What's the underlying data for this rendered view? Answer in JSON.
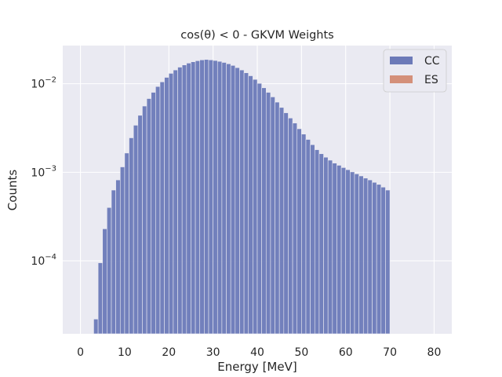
{
  "chart_data": {
    "type": "bar",
    "title": "cos(θ) < 0 - GKVM Weights",
    "xlabel": "Energy [MeV]",
    "ylabel": "Counts",
    "xlim": [
      -4,
      84
    ],
    "xticks": [
      0,
      10,
      20,
      30,
      40,
      50,
      60,
      70,
      80
    ],
    "yscale": "log",
    "ylim": [
      1.5e-05,
      0.027
    ],
    "yticks": [
      {
        "value": 0.0001,
        "base": "10",
        "exp": "−4"
      },
      {
        "value": 0.001,
        "base": "10",
        "exp": "−3"
      },
      {
        "value": 0.01,
        "base": "10",
        "exp": "−2"
      }
    ],
    "grid": true,
    "legend_position": "top-right",
    "bin_width": 1,
    "series": [
      {
        "name": "CC",
        "color": "#6c7ab8",
        "bins": [
          [
            3,
            2.2e-05
          ],
          [
            4,
            9.5e-05
          ],
          [
            5,
            0.00023
          ],
          [
            6,
            0.0004
          ],
          [
            7,
            0.00063
          ],
          [
            8,
            0.00082
          ],
          [
            9,
            0.00115
          ],
          [
            10,
            0.00165
          ],
          [
            11,
            0.00245
          ],
          [
            12,
            0.0034
          ],
          [
            13,
            0.0044
          ],
          [
            14,
            0.0056
          ],
          [
            15,
            0.0068
          ],
          [
            16,
            0.008
          ],
          [
            17,
            0.0093
          ],
          [
            18,
            0.0105
          ],
          [
            19,
            0.0118
          ],
          [
            20,
            0.0131
          ],
          [
            21,
            0.0143
          ],
          [
            22,
            0.0154
          ],
          [
            23,
            0.0163
          ],
          [
            24,
            0.0171
          ],
          [
            25,
            0.0177
          ],
          [
            26,
            0.0182
          ],
          [
            27,
            0.0186
          ],
          [
            28,
            0.0188
          ],
          [
            29,
            0.0186
          ],
          [
            30,
            0.0183
          ],
          [
            31,
            0.0179
          ],
          [
            32,
            0.0174
          ],
          [
            33,
            0.0168
          ],
          [
            34,
            0.0161
          ],
          [
            35,
            0.0152
          ],
          [
            36,
            0.0143
          ],
          [
            37,
            0.0133
          ],
          [
            38,
            0.0123
          ],
          [
            39,
            0.0112
          ],
          [
            40,
            0.0101
          ],
          [
            41,
            0.009
          ],
          [
            42,
            0.008
          ],
          [
            43,
            0.0071
          ],
          [
            44,
            0.0062
          ],
          [
            45,
            0.0054
          ],
          [
            46,
            0.0047
          ],
          [
            47,
            0.0041
          ],
          [
            48,
            0.0036
          ],
          [
            49,
            0.0031
          ],
          [
            50,
            0.0027
          ],
          [
            51,
            0.00235
          ],
          [
            52,
            0.00205
          ],
          [
            53,
            0.0018
          ],
          [
            54,
            0.00162
          ],
          [
            55,
            0.00148
          ],
          [
            56,
            0.00137
          ],
          [
            57,
            0.00127
          ],
          [
            58,
            0.0012
          ],
          [
            59,
            0.00113
          ],
          [
            60,
            0.00107
          ],
          [
            61,
            0.00101
          ],
          [
            62,
            0.00096
          ],
          [
            63,
            0.00091
          ],
          [
            64,
            0.00086
          ],
          [
            65,
            0.00082
          ],
          [
            66,
            0.00077
          ],
          [
            67,
            0.00073
          ],
          [
            68,
            0.00068
          ],
          [
            69,
            0.00063
          ]
        ]
      },
      {
        "name": "ES",
        "color": "#d4907a",
        "bins": []
      }
    ]
  }
}
